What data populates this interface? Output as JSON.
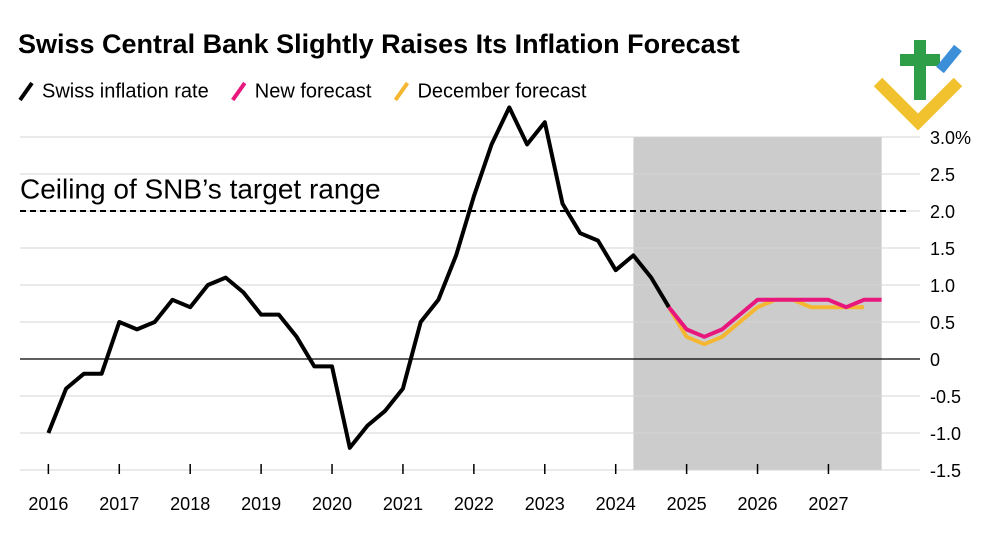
{
  "chart_data": {
    "type": "line",
    "title": "Swiss Central Bank Slightly Raises Its Inflation Forecast",
    "series": [
      {
        "name": "Swiss inflation rate",
        "color": "#000000",
        "x": [
          2016,
          2016.25,
          2016.5,
          2016.75,
          2017,
          2017.25,
          2017.5,
          2017.75,
          2018,
          2018.25,
          2018.5,
          2018.75,
          2019,
          2019.25,
          2019.5,
          2019.75,
          2020,
          2020.25,
          2020.5,
          2020.75,
          2021,
          2021.25,
          2021.5,
          2021.75,
          2022,
          2022.25,
          2022.5,
          2022.75,
          2023,
          2023.25,
          2023.5,
          2023.75,
          2024,
          2024.25,
          2024.5,
          2024.75
        ],
        "values": [
          -1.0,
          -0.4,
          -0.2,
          -0.2,
          0.5,
          0.4,
          0.5,
          0.8,
          0.7,
          1.0,
          1.1,
          0.9,
          0.6,
          0.6,
          0.3,
          -0.1,
          -0.1,
          -1.2,
          -0.9,
          -0.7,
          -0.4,
          0.5,
          0.8,
          1.4,
          2.2,
          2.9,
          3.4,
          2.9,
          3.2,
          2.1,
          1.7,
          1.6,
          1.2,
          1.4,
          1.1,
          0.7
        ]
      },
      {
        "name": "New forecast",
        "color": "#e8177d",
        "x": [
          2024.75,
          2025,
          2025.25,
          2025.5,
          2025.75,
          2026,
          2026.25,
          2026.5,
          2026.75,
          2027,
          2027.25,
          2027.5,
          2027.75
        ],
        "values": [
          0.7,
          0.4,
          0.3,
          0.4,
          0.6,
          0.8,
          0.8,
          0.8,
          0.8,
          0.8,
          0.7,
          0.8,
          0.8
        ]
      },
      {
        "name": "December forecast",
        "color": "#f5b731",
        "x": [
          2024.75,
          2025,
          2025.25,
          2025.5,
          2025.75,
          2026,
          2026.25,
          2026.5,
          2026.75,
          2027,
          2027.25,
          2027.5
        ],
        "values": [
          0.7,
          0.3,
          0.2,
          0.3,
          0.5,
          0.7,
          0.8,
          0.8,
          0.7,
          0.7,
          0.7,
          0.7
        ]
      }
    ],
    "xlim": [
      2015.6,
      2028.15
    ],
    "xticks": [
      2016,
      2017,
      2018,
      2019,
      2020,
      2021,
      2022,
      2023,
      2024,
      2025,
      2026,
      2027
    ],
    "ylim": [
      -1.5,
      3.0
    ],
    "yticks": [
      -1.5,
      {
        "value": -1,
        "label": "-1.0"
      },
      -0.5,
      0,
      0.5,
      {
        "value": 1,
        "label": "1.0"
      },
      1.5,
      {
        "value": 2,
        "label": "2.0"
      },
      2.5,
      {
        "value": 3,
        "label": "3.0%"
      }
    ],
    "grid": true,
    "forecast_region": [
      2024.25,
      2027.75
    ],
    "reference_line": {
      "value": 2,
      "label": "Ceiling of SNB’s target range"
    }
  }
}
